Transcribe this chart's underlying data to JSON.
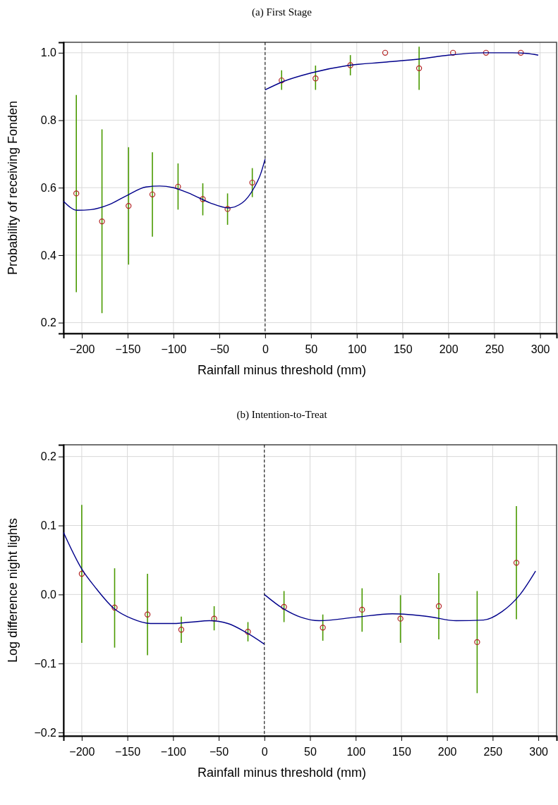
{
  "chart_data": [
    {
      "type": "scatter",
      "title": "(a) First Stage",
      "xlabel": "Rainfall minus threshold (mm)",
      "ylabel": "Probability of receiving Fonden",
      "xlim": [
        -220,
        318
      ],
      "ylim": [
        0.168,
        1.031
      ],
      "xticks": [
        {
          "value": -200,
          "label": "−200"
        },
        {
          "value": -150,
          "label": "−150"
        },
        {
          "value": -100,
          "label": "−100"
        },
        {
          "value": -50,
          "label": "−50"
        },
        0,
        50,
        100,
        150,
        200,
        250,
        300
      ],
      "yticks": [
        0.2,
        0.4,
        0.6,
        0.8,
        {
          "value": 1,
          "label": "1.0"
        }
      ],
      "grid": true,
      "ref_lines": [
        {
          "axis": "x",
          "value": 0,
          "line_style": "dashed",
          "color": "#000000"
        }
      ],
      "series": [
        {
          "marker": "circle",
          "color": "#b22222",
          "x": [
            -206,
            -178,
            -149,
            -123,
            -95,
            -68,
            -41,
            -14,
            18,
            55,
            93,
            131,
            168,
            205,
            241,
            279
          ],
          "values": [
            0.583,
            0.5,
            0.546,
            0.58,
            0.603,
            0.566,
            0.537,
            0.615,
            0.918,
            0.924,
            0.963,
            1.0,
            0.954,
            1.0,
            1.0,
            1.0
          ],
          "errors": [
            [
              0.29,
              0.875
            ],
            [
              0.228,
              0.773
            ],
            [
              0.372,
              0.72
            ],
            [
              0.455,
              0.705
            ],
            [
              0.535,
              0.672
            ],
            [
              0.518,
              0.613
            ],
            [
              0.49,
              0.583
            ],
            [
              0.572,
              0.658
            ],
            [
              0.89,
              0.948
            ],
            [
              0.89,
              0.962
            ],
            [
              0.933,
              0.993
            ],
            null,
            [
              0.89,
              1.018
            ],
            null,
            null,
            null
          ]
        },
        {
          "type": "line",
          "color": "#00008b",
          "x": [
            -220,
            -205,
            -190,
            -170,
            -150,
            -130,
            -115,
            -100,
            -80,
            -60,
            -40,
            -25,
            -12,
            -5,
            0
          ],
          "values": [
            0.56,
            0.533,
            0.535,
            0.55,
            0.578,
            0.602,
            0.605,
            0.6,
            0.58,
            0.555,
            0.54,
            0.555,
            0.6,
            0.64,
            0.685
          ]
        },
        {
          "type": "line",
          "color": "#00008b",
          "x": [
            0,
            20,
            50,
            90,
            130,
            170,
            200,
            240,
            270,
            285,
            298
          ],
          "values": [
            0.89,
            0.915,
            0.94,
            0.962,
            0.972,
            0.982,
            0.993,
            1.0,
            1.0,
            0.998,
            0.993
          ]
        }
      ]
    },
    {
      "type": "scatter",
      "title": "(b) Intention-to-Treat",
      "xlabel": "Rainfall minus threshold (mm)",
      "ylabel": "Log difference night lights",
      "xlim": [
        -220,
        320
      ],
      "ylim": [
        -0.205,
        0.217
      ],
      "xticks": [
        {
          "value": -200,
          "label": "−200"
        },
        {
          "value": -150,
          "label": "−150"
        },
        {
          "value": -100,
          "label": "−100"
        },
        {
          "value": -50,
          "label": "−50"
        },
        0,
        50,
        100,
        150,
        200,
        250,
        300
      ],
      "yticks": [
        {
          "value": -0.2,
          "label": "−0.2"
        },
        {
          "value": -0.1,
          "label": "−0.1"
        },
        {
          "value": 0,
          "label": "0.0"
        },
        0.1,
        0.2
      ],
      "grid": true,
      "ref_lines": [
        {
          "axis": "x",
          "value": 0,
          "line_style": "dashed",
          "color": "#000000"
        }
      ],
      "series": [
        {
          "marker": "circle",
          "color": "#b22222",
          "x": [
            -200,
            -164,
            -128,
            -91,
            -55,
            -18,
            21.5,
            64,
            107,
            149,
            191,
            233,
            276
          ],
          "values": [
            0.03,
            -0.019,
            -0.029,
            -0.051,
            -0.035,
            -0.054,
            -0.018,
            -0.048,
            -0.022,
            -0.035,
            -0.017,
            -0.069,
            0.046
          ],
          "errors": [
            [
              -0.07,
              0.13
            ],
            [
              -0.077,
              0.038
            ],
            [
              -0.088,
              0.03
            ],
            [
              -0.07,
              -0.032
            ],
            [
              -0.052,
              -0.017
            ],
            [
              -0.068,
              -0.04
            ],
            [
              -0.04,
              0.005
            ],
            [
              -0.067,
              -0.029
            ],
            [
              -0.054,
              0.009
            ],
            [
              -0.07,
              -0.001
            ],
            [
              -0.065,
              0.031
            ],
            [
              -0.143,
              0.005
            ],
            [
              -0.036,
              0.128
            ]
          ]
        },
        {
          "type": "line",
          "color": "#00008b",
          "x": [
            -220,
            -200,
            -185,
            -165,
            -145,
            -125,
            -100,
            -80,
            -60,
            -40,
            -20,
            0
          ],
          "values": [
            0.09,
            0.037,
            0.01,
            -0.02,
            -0.035,
            -0.042,
            -0.042,
            -0.04,
            -0.038,
            -0.042,
            -0.055,
            -0.072
          ]
        },
        {
          "type": "line",
          "color": "#00008b",
          "x": [
            0,
            20,
            40,
            60,
            100,
            140,
            180,
            210,
            240,
            260,
            280,
            297
          ],
          "values": [
            0.0,
            -0.02,
            -0.033,
            -0.038,
            -0.033,
            -0.028,
            -0.032,
            -0.038,
            -0.037,
            -0.025,
            0.0,
            0.034
          ]
        }
      ]
    }
  ]
}
